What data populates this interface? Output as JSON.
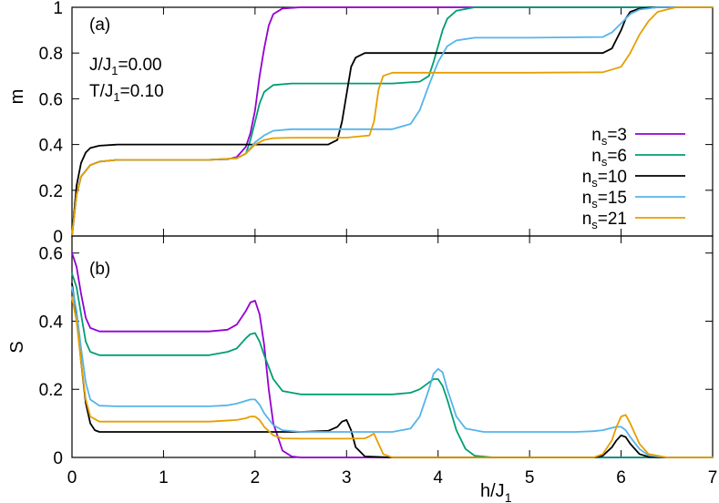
{
  "chart_data": [
    {
      "type": "line",
      "panel_label": "(a)",
      "ylabel": "m",
      "xlabel": "",
      "xlim": [
        0,
        7
      ],
      "ylim": [
        0,
        1
      ],
      "xticks": [
        "0",
        "1",
        "2",
        "3",
        "4",
        "5",
        "6",
        "7"
      ],
      "yticks": [
        "0",
        "0.2",
        "0.4",
        "0.6",
        "0.8",
        "1"
      ],
      "annotations": {
        "coupling": "J/J",
        "coupling_sub": "1",
        "coupling_val": "=0.00",
        "temp": "T/J",
        "temp_sub": "1",
        "temp_val": "=0.10"
      },
      "legend": {
        "placement": "right"
      },
      "series": [
        {
          "name": "n",
          "sub": "s",
          "val": "=3",
          "color": "#9400d3",
          "x": [
            0,
            0.05,
            0.1,
            0.2,
            0.3,
            0.5,
            1.0,
            1.5,
            1.7,
            1.8,
            1.9,
            1.95,
            2.0,
            2.05,
            2.1,
            2.15,
            2.2,
            2.3,
            2.5,
            3,
            4,
            5,
            6,
            7
          ],
          "y": [
            0,
            0.18,
            0.26,
            0.31,
            0.325,
            0.333,
            0.333,
            0.333,
            0.336,
            0.345,
            0.39,
            0.45,
            0.55,
            0.7,
            0.82,
            0.92,
            0.97,
            0.995,
            1,
            1,
            1,
            1,
            1,
            1
          ]
        },
        {
          "name": "n",
          "sub": "s",
          "val": "=6",
          "color": "#009e73",
          "x": [
            0,
            0.05,
            0.1,
            0.2,
            0.3,
            0.5,
            1.0,
            1.5,
            1.8,
            1.9,
            1.95,
            2.0,
            2.05,
            2.1,
            2.2,
            2.4,
            3,
            3.5,
            3.8,
            3.9,
            3.95,
            4.0,
            4.05,
            4.1,
            4.2,
            4.4,
            5,
            6,
            7
          ],
          "y": [
            0,
            0.18,
            0.26,
            0.31,
            0.325,
            0.333,
            0.333,
            0.333,
            0.34,
            0.36,
            0.42,
            0.5,
            0.58,
            0.63,
            0.66,
            0.667,
            0.667,
            0.667,
            0.675,
            0.7,
            0.76,
            0.83,
            0.9,
            0.95,
            0.985,
            1,
            1,
            1,
            1
          ]
        },
        {
          "name": "n",
          "sub": "s",
          "val": "=10",
          "color": "#000000",
          "x": [
            0,
            0.05,
            0.1,
            0.15,
            0.2,
            0.3,
            0.5,
            1.0,
            1.5,
            2.0,
            2.5,
            2.8,
            2.9,
            2.95,
            3.0,
            3.05,
            3.1,
            3.2,
            3.5,
            4,
            5,
            5.8,
            5.9,
            5.95,
            6.0,
            6.05,
            6.1,
            6.2,
            6.4,
            7
          ],
          "y": [
            0,
            0.22,
            0.32,
            0.365,
            0.385,
            0.395,
            0.4,
            0.4,
            0.4,
            0.4,
            0.4,
            0.4,
            0.42,
            0.5,
            0.62,
            0.74,
            0.78,
            0.8,
            0.8,
            0.8,
            0.8,
            0.8,
            0.82,
            0.86,
            0.9,
            0.95,
            0.98,
            0.995,
            1,
            1
          ]
        },
        {
          "name": "n",
          "sub": "s",
          "val": "=15",
          "color": "#56b4e9",
          "x": [
            0,
            0.05,
            0.1,
            0.2,
            0.3,
            0.5,
            1.0,
            1.5,
            1.8,
            1.9,
            2.0,
            2.1,
            2.2,
            2.4,
            3,
            3.5,
            3.7,
            3.8,
            3.9,
            4.0,
            4.1,
            4.2,
            4.4,
            5,
            5.8,
            5.9,
            6.0,
            6.1,
            6.2,
            6.4,
            7
          ],
          "y": [
            0,
            0.18,
            0.26,
            0.31,
            0.325,
            0.333,
            0.333,
            0.333,
            0.34,
            0.36,
            0.41,
            0.44,
            0.46,
            0.467,
            0.467,
            0.467,
            0.49,
            0.55,
            0.66,
            0.76,
            0.83,
            0.855,
            0.867,
            0.867,
            0.87,
            0.89,
            0.93,
            0.97,
            0.99,
            1,
            1
          ]
        },
        {
          "name": "n",
          "sub": "s",
          "val": "=21",
          "color": "#e69f00",
          "x": [
            0,
            0.05,
            0.1,
            0.2,
            0.3,
            0.5,
            1.0,
            1.5,
            1.8,
            1.9,
            2.0,
            2.1,
            2.2,
            2.4,
            3,
            3.25,
            3.3,
            3.35,
            3.4,
            3.5,
            4,
            5,
            5.8,
            6.0,
            6.1,
            6.2,
            6.3,
            6.4,
            6.6,
            7
          ],
          "y": [
            0,
            0.18,
            0.26,
            0.31,
            0.325,
            0.333,
            0.333,
            0.333,
            0.34,
            0.36,
            0.4,
            0.42,
            0.428,
            0.43,
            0.43,
            0.44,
            0.5,
            0.64,
            0.7,
            0.714,
            0.714,
            0.714,
            0.716,
            0.74,
            0.8,
            0.88,
            0.94,
            0.98,
            1,
            1
          ]
        }
      ]
    },
    {
      "type": "line",
      "panel_label": "(b)",
      "ylabel": "S",
      "xlabel": "h/J",
      "xlabel_sub": "1",
      "xlim": [
        0,
        7
      ],
      "ylim": [
        0,
        0.65
      ],
      "xticks": [
        "0",
        "1",
        "2",
        "3",
        "4",
        "5",
        "6",
        "7"
      ],
      "yticks": [
        "0",
        "0.2",
        "0.4",
        "0.6"
      ],
      "series": [
        {
          "name": "n",
          "sub": "s",
          "val": "=3",
          "color": "#9400d3",
          "x": [
            0,
            0.05,
            0.1,
            0.15,
            0.2,
            0.3,
            0.5,
            1.0,
            1.5,
            1.7,
            1.8,
            1.9,
            1.95,
            2.0,
            2.05,
            2.1,
            2.15,
            2.2,
            2.3,
            2.4,
            2.5,
            3,
            7
          ],
          "y": [
            0.6,
            0.56,
            0.48,
            0.41,
            0.38,
            0.37,
            0.37,
            0.37,
            0.37,
            0.375,
            0.39,
            0.43,
            0.455,
            0.46,
            0.42,
            0.33,
            0.2,
            0.1,
            0.02,
            0.003,
            0,
            0,
            0
          ]
        },
        {
          "name": "n",
          "sub": "s",
          "val": "=6",
          "color": "#009e73",
          "x": [
            0,
            0.05,
            0.1,
            0.15,
            0.2,
            0.3,
            0.5,
            1.0,
            1.5,
            1.7,
            1.8,
            1.9,
            1.95,
            2.0,
            2.05,
            2.1,
            2.2,
            2.3,
            2.5,
            3,
            3.5,
            3.7,
            3.8,
            3.9,
            3.95,
            4.0,
            4.05,
            4.1,
            4.2,
            4.3,
            4.4,
            4.6,
            7
          ],
          "y": [
            0.54,
            0.5,
            0.42,
            0.34,
            0.31,
            0.3,
            0.3,
            0.3,
            0.3,
            0.31,
            0.32,
            0.35,
            0.362,
            0.365,
            0.34,
            0.3,
            0.23,
            0.195,
            0.185,
            0.185,
            0.185,
            0.19,
            0.2,
            0.22,
            0.23,
            0.23,
            0.21,
            0.17,
            0.08,
            0.025,
            0.005,
            0,
            0
          ]
        },
        {
          "name": "n",
          "sub": "s",
          "val": "=10",
          "color": "#000000",
          "x": [
            0,
            0.05,
            0.1,
            0.15,
            0.2,
            0.25,
            0.3,
            0.5,
            1.0,
            2.0,
            2.5,
            2.8,
            2.9,
            2.95,
            3.0,
            3.05,
            3.1,
            3.2,
            3.5,
            5,
            5.7,
            5.8,
            5.9,
            5.95,
            6.0,
            6.05,
            6.1,
            6.2,
            6.3,
            6.5,
            7
          ],
          "y": [
            0.51,
            0.42,
            0.28,
            0.16,
            0.1,
            0.08,
            0.075,
            0.075,
            0.075,
            0.075,
            0.075,
            0.078,
            0.09,
            0.105,
            0.11,
            0.08,
            0.03,
            0.003,
            0,
            0,
            0,
            0.005,
            0.03,
            0.05,
            0.065,
            0.06,
            0.04,
            0.01,
            0.002,
            0,
            0
          ]
        },
        {
          "name": "n",
          "sub": "s",
          "val": "=15",
          "color": "#56b4e9",
          "x": [
            0,
            0.05,
            0.1,
            0.15,
            0.2,
            0.3,
            0.5,
            1.0,
            1.5,
            1.7,
            1.8,
            1.9,
            1.95,
            2.0,
            2.05,
            2.1,
            2.2,
            2.3,
            2.5,
            3,
            3.5,
            3.7,
            3.8,
            3.9,
            3.95,
            4.0,
            4.05,
            4.1,
            4.2,
            4.3,
            4.5,
            5,
            5.5,
            5.7,
            5.8,
            5.9,
            5.95,
            6.0,
            6.05,
            6.1,
            6.2,
            6.3,
            6.5,
            7
          ],
          "y": [
            0.5,
            0.43,
            0.32,
            0.22,
            0.17,
            0.152,
            0.15,
            0.15,
            0.15,
            0.153,
            0.158,
            0.166,
            0.17,
            0.17,
            0.155,
            0.13,
            0.095,
            0.08,
            0.075,
            0.075,
            0.075,
            0.085,
            0.12,
            0.2,
            0.245,
            0.26,
            0.25,
            0.2,
            0.12,
            0.085,
            0.075,
            0.075,
            0.075,
            0.077,
            0.08,
            0.087,
            0.09,
            0.09,
            0.08,
            0.06,
            0.025,
            0.006,
            0,
            0
          ]
        },
        {
          "name": "n",
          "sub": "s",
          "val": "=21",
          "color": "#e69f00",
          "x": [
            0,
            0.05,
            0.1,
            0.15,
            0.2,
            0.3,
            0.5,
            1.0,
            1.5,
            1.8,
            1.9,
            1.95,
            2.0,
            2.05,
            2.1,
            2.2,
            2.3,
            2.5,
            3,
            3.2,
            3.25,
            3.3,
            3.35,
            3.4,
            3.5,
            4,
            5,
            5.7,
            5.8,
            5.9,
            5.95,
            6.0,
            6.05,
            6.1,
            6.2,
            6.3,
            6.5,
            7
          ],
          "y": [
            0.47,
            0.4,
            0.28,
            0.17,
            0.12,
            0.105,
            0.105,
            0.105,
            0.105,
            0.11,
            0.115,
            0.12,
            0.12,
            0.11,
            0.09,
            0.065,
            0.056,
            0.055,
            0.055,
            0.056,
            0.062,
            0.07,
            0.04,
            0.01,
            0,
            0,
            0,
            0,
            0.01,
            0.05,
            0.09,
            0.12,
            0.125,
            0.1,
            0.04,
            0.01,
            0,
            0
          ]
        }
      ]
    }
  ]
}
